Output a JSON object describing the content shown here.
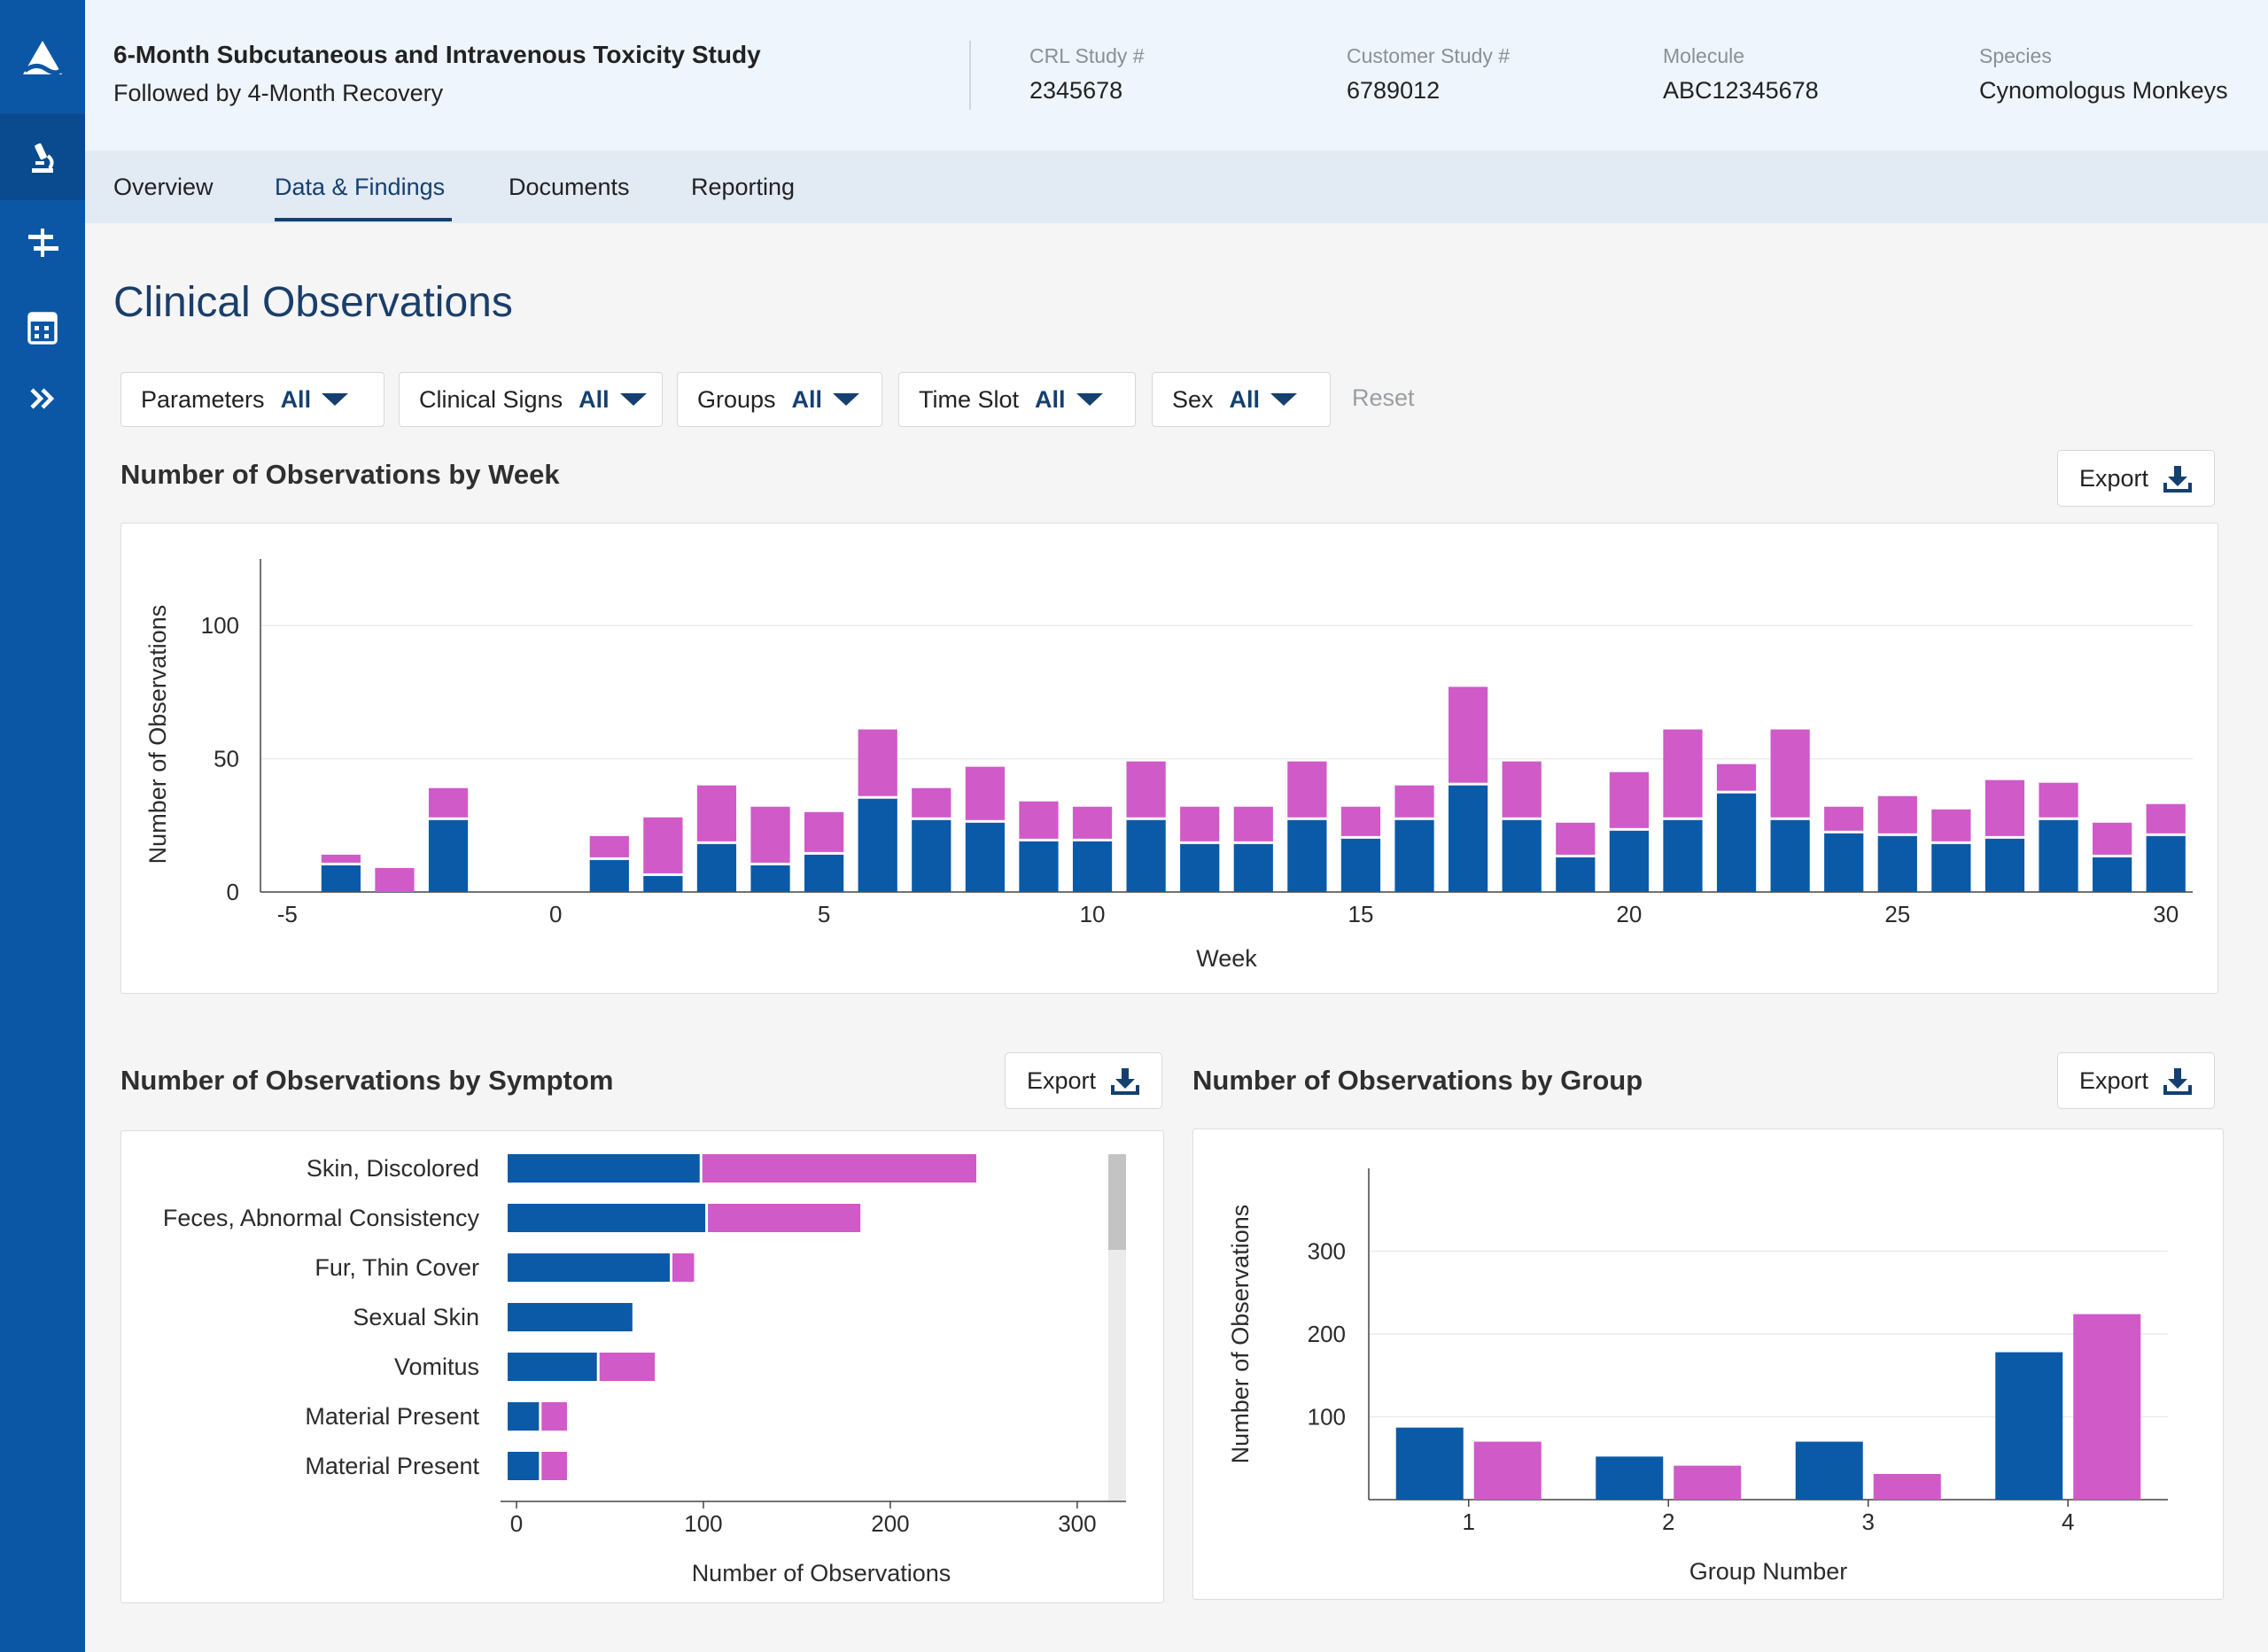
{
  "header": {
    "title_line1": "6-Month Subcutaneous and Intravenous Toxicity Study",
    "title_line2": "Followed by 4-Month Recovery",
    "meta": [
      {
        "label": "CRL Study #",
        "value": "2345678"
      },
      {
        "label": "Customer Study #",
        "value": "6789012"
      },
      {
        "label": "Molecule",
        "value": "ABC12345678"
      },
      {
        "label": "Species",
        "value": "Cynomologus Monkeys"
      }
    ]
  },
  "rail": {
    "icons": [
      "logo-icon",
      "microscope-icon",
      "timeline-icon",
      "calculator-icon",
      "double-chevron-right-icon"
    ]
  },
  "tabs": [
    "Overview",
    "Data & Findings",
    "Documents",
    "Reporting"
  ],
  "active_tab": "Data & Findings",
  "page_title": "Clinical Observations",
  "filters": [
    {
      "label": "Parameters",
      "value": "All"
    },
    {
      "label": "Clinical Signs",
      "value": "All"
    },
    {
      "label": "Groups",
      "value": "All"
    },
    {
      "label": "Time Slot",
      "value": "All"
    },
    {
      "label": "Sex",
      "value": "All"
    }
  ],
  "reset_label": "Reset",
  "export_label": "Export",
  "colors": {
    "male": "#0a5aa8",
    "female": "#cf5ac8",
    "rail": "#0b57a6",
    "accent": "#14406f"
  },
  "chart_data": [
    {
      "type": "bar",
      "title": "Number of Observations by Week",
      "stacked": true,
      "xlabel": "Week",
      "ylabel": "Number of Observations",
      "xlim": [
        -5.5,
        30.5
      ],
      "ylim": [
        0,
        125
      ],
      "xticks": [
        -5,
        0,
        5,
        10,
        15,
        20,
        25,
        30
      ],
      "yticks": [
        0,
        50,
        100
      ],
      "grid": true,
      "x": [
        -4,
        -3,
        -2,
        1,
        2,
        3,
        4,
        5,
        6,
        7,
        8,
        9,
        10,
        11,
        12,
        13,
        14,
        15,
        16,
        17,
        18,
        19,
        20,
        21,
        22,
        23,
        24,
        25,
        26,
        27,
        28,
        29,
        30
      ],
      "series": [
        {
          "values": [
            10,
            0,
            27,
            12,
            6,
            18,
            10,
            14,
            35,
            27,
            26,
            19,
            19,
            27,
            18,
            18,
            27,
            20,
            27,
            40,
            27,
            13,
            23,
            27,
            37,
            27,
            22,
            21,
            18,
            20,
            27,
            13,
            21
          ]
        },
        {
          "values": [
            4,
            9,
            12,
            9,
            22,
            22,
            22,
            16,
            26,
            12,
            21,
            15,
            13,
            22,
            14,
            14,
            22,
            12,
            13,
            37,
            22,
            13,
            22,
            34,
            11,
            34,
            10,
            15,
            13,
            22,
            14,
            13,
            12
          ]
        }
      ]
    },
    {
      "type": "bar",
      "orientation": "horizontal",
      "title": "Number of Observations by Symptom",
      "stacked": true,
      "xlabel": "Number of Observations",
      "ylabel": "",
      "xlim": [
        0,
        310
      ],
      "xticks": [
        0,
        100,
        200,
        300
      ],
      "categories": [
        "Skin, Discolored",
        "Feces, Abnormal Consistency",
        "Fur, Thin Cover",
        "Sexual Skin",
        "Vomitus",
        "Material Present",
        "Material Present"
      ],
      "series": [
        {
          "values": [
            98,
            101,
            82,
            62,
            43,
            12,
            12
          ]
        },
        {
          "values": [
            148,
            83,
            13,
            0,
            31,
            15,
            15
          ]
        }
      ]
    },
    {
      "type": "bar",
      "title": "Number of Observations by Group",
      "stacked": false,
      "xlabel": "Group Number",
      "ylabel": "Number of Observations",
      "ylim": [
        0,
        400
      ],
      "yticks": [
        100,
        200,
        300
      ],
      "grid": true,
      "categories": [
        "1",
        "2",
        "3",
        "4"
      ],
      "series": [
        {
          "values": [
            87,
            52,
            70,
            178
          ]
        },
        {
          "values": [
            70,
            41,
            31,
            224
          ]
        }
      ]
    }
  ]
}
